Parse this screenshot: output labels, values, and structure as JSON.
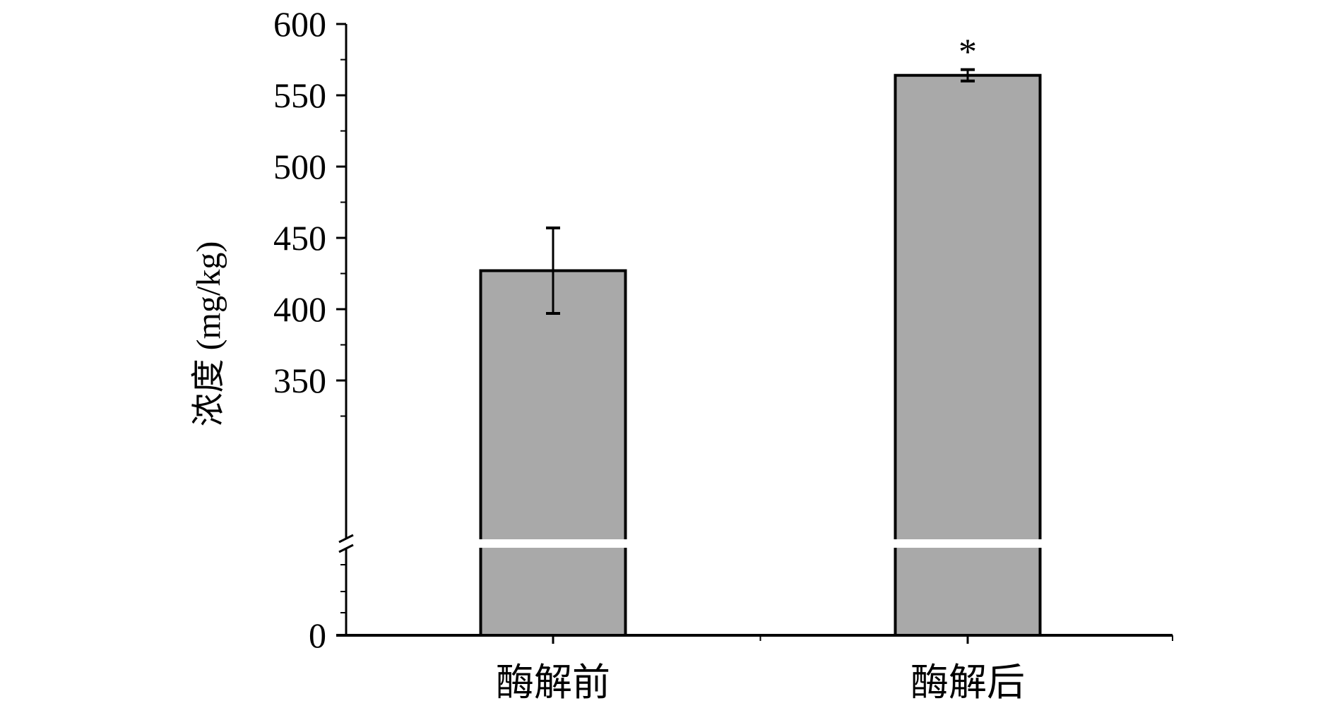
{
  "chart_data": {
    "type": "bar",
    "title": "",
    "xlabel": "",
    "ylabel": "浓度 (mg/kg)",
    "categories": [
      "酶解前",
      "酶解后"
    ],
    "series": [
      {
        "values": [
          427,
          564
        ],
        "error": [
          30,
          4
        ],
        "annotations": [
          "",
          "*"
        ]
      }
    ],
    "y_axis": {
      "break": true,
      "lower_ticks": [
        0
      ],
      "upper_ticks": [
        350,
        400,
        450,
        500,
        550,
        600
      ],
      "upper_range": [
        300,
        600
      ]
    },
    "colors": {
      "bar_fill": "#a9a9a9",
      "bar_stroke": "#000000",
      "axis": "#000000",
      "break_gap": "#ffffff"
    },
    "grid": false,
    "legend": "none"
  }
}
